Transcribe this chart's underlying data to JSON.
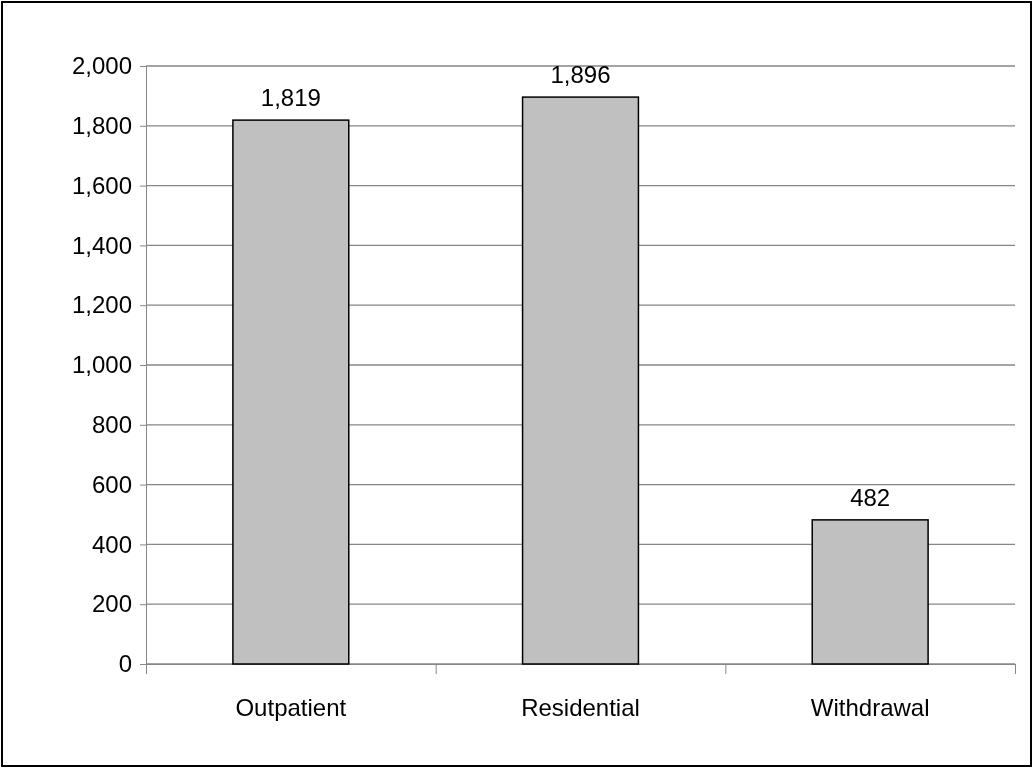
{
  "chart_data": {
    "type": "bar",
    "categories": [
      "Outpatient",
      "Residential",
      "Withdrawal"
    ],
    "values": [
      1819,
      1896,
      482
    ],
    "value_labels": [
      "1,819",
      "1,896",
      "482"
    ],
    "color": "#c0c0c0",
    "ylim": [
      0,
      2000
    ],
    "yticks": [
      {
        "value": 0,
        "label": "0"
      },
      {
        "value": 200,
        "label": "200"
      },
      {
        "value": 400,
        "label": "400"
      },
      {
        "value": 600,
        "label": "600"
      },
      {
        "value": 800,
        "label": "800"
      },
      {
        "value": 1000,
        "label": "1,000"
      },
      {
        "value": 1200,
        "label": "1,200"
      },
      {
        "value": 1400,
        "label": "1,400"
      },
      {
        "value": 1600,
        "label": "1,600"
      },
      {
        "value": 1800,
        "label": "1,800"
      },
      {
        "value": 2000,
        "label": "2,000"
      }
    ],
    "grid": "y"
  }
}
